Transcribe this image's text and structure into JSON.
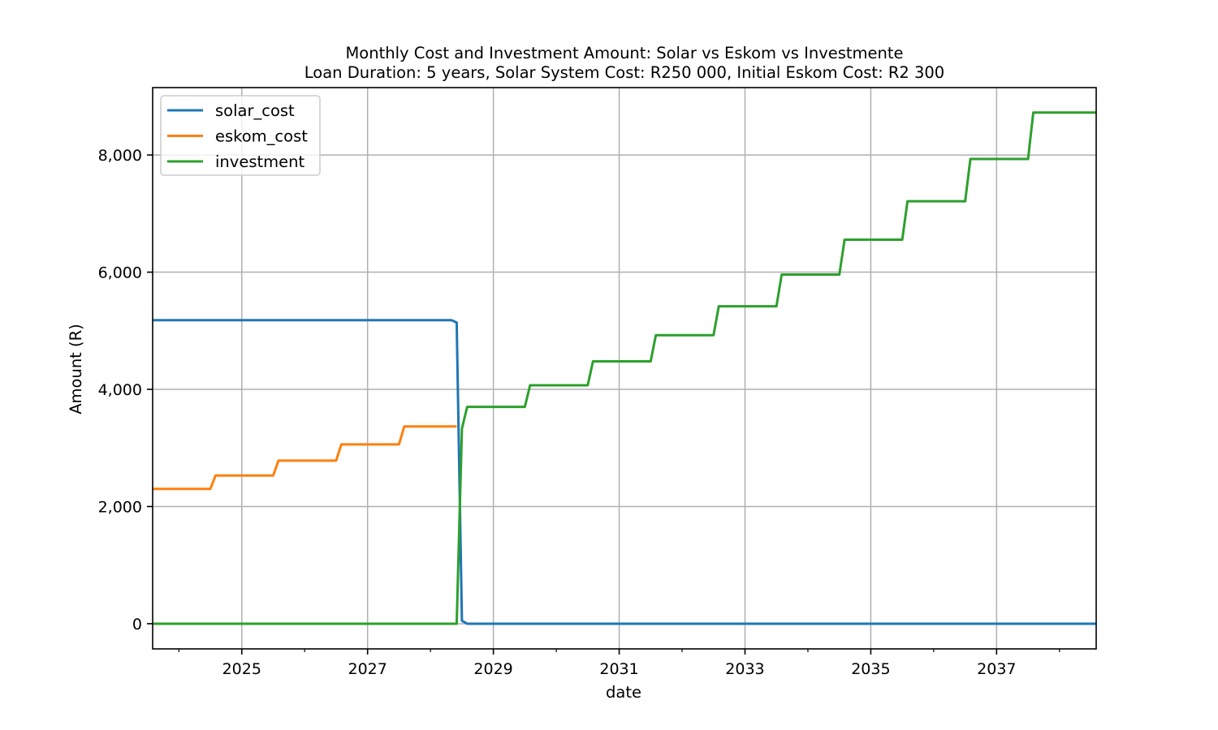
{
  "chart_data": {
    "type": "line",
    "title": "Monthly Cost and Investment Amount: Solar vs Eskom vs Investmente",
    "subtitle": "Loan Duration: 5 years, Solar System Cost: R250 000, Initial Eskom Cost: R2 300",
    "xlabel": "date",
    "ylabel": "Amount (R)",
    "xlim": [
      "2023-08",
      "2038-08"
    ],
    "ylim": [
      -430,
      9150
    ],
    "x_ticks": [
      "2025",
      "2027",
      "2029",
      "2031",
      "2033",
      "2035",
      "2037"
    ],
    "x_minor_ticks": [
      "2024",
      "2026",
      "2028",
      "2030",
      "2032",
      "2034",
      "2036",
      "2038"
    ],
    "y_ticks": [
      0,
      2000,
      4000,
      6000,
      8000
    ],
    "y_tick_labels": [
      "0",
      "2,000",
      "4,000",
      "6,000",
      "8,000"
    ],
    "grid": true,
    "legend_position": "top-left",
    "series": [
      {
        "name": "solar_cost",
        "color": "#1f77b4",
        "x": [
          "2023-08",
          "2028-05",
          "2028-06",
          "2028-07",
          "2028-08",
          "2038-08"
        ],
        "y": [
          5180,
          5180,
          5140,
          50,
          0,
          0
        ]
      },
      {
        "name": "eskom_cost",
        "color": "#ff7f0e",
        "x": [
          "2023-08",
          "2024-07",
          "2024-08",
          "2025-07",
          "2025-08",
          "2026-07",
          "2026-08",
          "2027-07",
          "2027-08",
          "2028-06"
        ],
        "y": [
          2300,
          2300,
          2530,
          2530,
          2783,
          2783,
          3061,
          3061,
          3367,
          3367
        ]
      },
      {
        "name": "investment",
        "color": "#2ca02c",
        "x": [
          "2023-08",
          "2028-06",
          "2028-07",
          "2028-08",
          "2029-07",
          "2029-08",
          "2030-07",
          "2030-08",
          "2031-07",
          "2031-08",
          "2032-07",
          "2032-08",
          "2033-07",
          "2033-08",
          "2034-07",
          "2034-08",
          "2035-07",
          "2035-08",
          "2036-07",
          "2036-08",
          "2037-07",
          "2037-08",
          "2038-08"
        ],
        "y": [
          0,
          0,
          3330,
          3700,
          3700,
          4070,
          4070,
          4477,
          4477,
          4925,
          4925,
          5417,
          5417,
          5959,
          5959,
          6555,
          6555,
          7210,
          7210,
          7931,
          7931,
          8724,
          8724
        ]
      }
    ]
  }
}
